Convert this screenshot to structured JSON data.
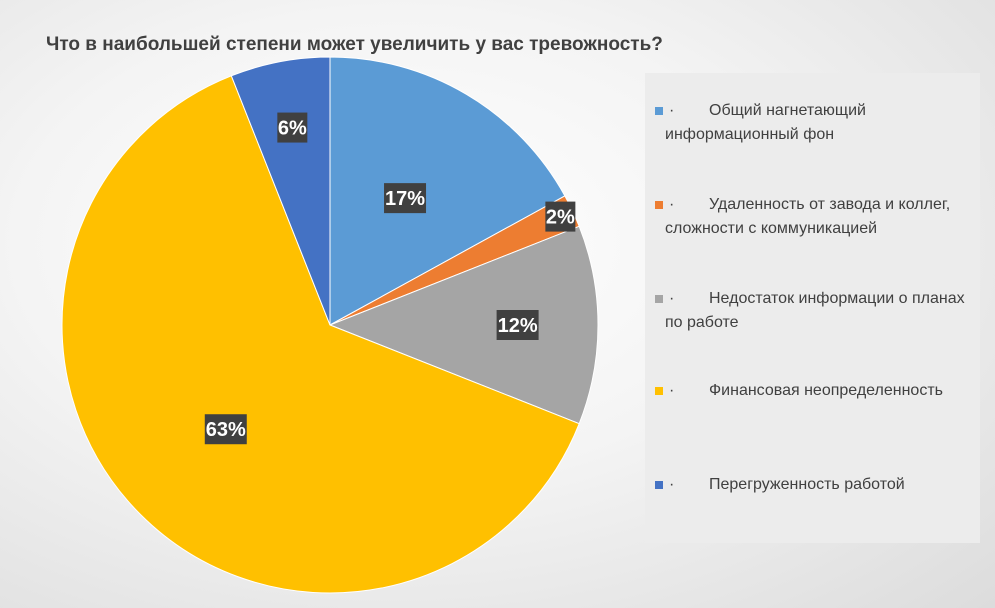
{
  "chart_data": {
    "type": "pie",
    "title": "Что в наибольшей степени может увеличить у вас тревожность?",
    "categories": [
      "Общий нагнетающий информационный фон",
      "Удаленность от завода и коллег, сложности с коммуникацией",
      "Недостаток информации о планах по работе",
      "Финансовая неопределенность",
      "Перегруженность работой"
    ],
    "values": [
      17,
      2,
      12,
      63,
      6
    ],
    "data_labels": [
      "17%",
      "2%",
      "12%",
      "63%",
      "6%"
    ],
    "colors": [
      "#5B9BD5",
      "#ED7D31",
      "#A5A5A5",
      "#FFC000",
      "#4472C4"
    ],
    "legend_position": "right",
    "legend_bullet": "·"
  }
}
